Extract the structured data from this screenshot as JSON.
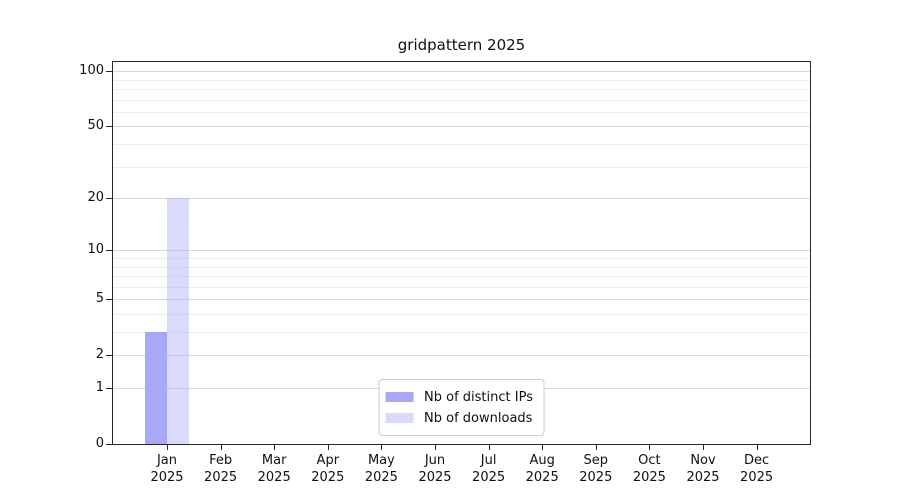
{
  "chart_data": {
    "type": "bar",
    "title": "gridpattern 2025",
    "categories": [
      "Jan",
      "Feb",
      "Mar",
      "Apr",
      "May",
      "Jun",
      "Jul",
      "Aug",
      "Sep",
      "Oct",
      "Nov",
      "Dec"
    ],
    "year": "2025",
    "series": [
      {
        "name": "Nb of distinct IPs",
        "color": "#a8a8f8",
        "values": [
          3,
          0,
          0,
          0,
          0,
          0,
          0,
          0,
          0,
          0,
          0,
          0
        ]
      },
      {
        "name": "Nb of downloads",
        "color": "rgba(168,168,250,0.42)",
        "values": [
          20,
          0,
          0,
          0,
          0,
          0,
          0,
          0,
          0,
          0,
          0,
          0
        ]
      }
    ],
    "y_axis": {
      "scale": "log10(value+1)",
      "tick_values": [
        0,
        1,
        2,
        5,
        10,
        20,
        50,
        100
      ],
      "minor_gridline_values": [
        3,
        4,
        6,
        7,
        8,
        9,
        30,
        40,
        60,
        70,
        80,
        90
      ],
      "ylim": [
        0,
        112
      ]
    },
    "legend_position": "lower center",
    "grid": true
  },
  "colors": {
    "major_gridline": "#d9d9d9",
    "minor_gridline": "#ededed",
    "axis": "#262626",
    "legend_border": "#cccccc",
    "background": "#ffffff"
  }
}
